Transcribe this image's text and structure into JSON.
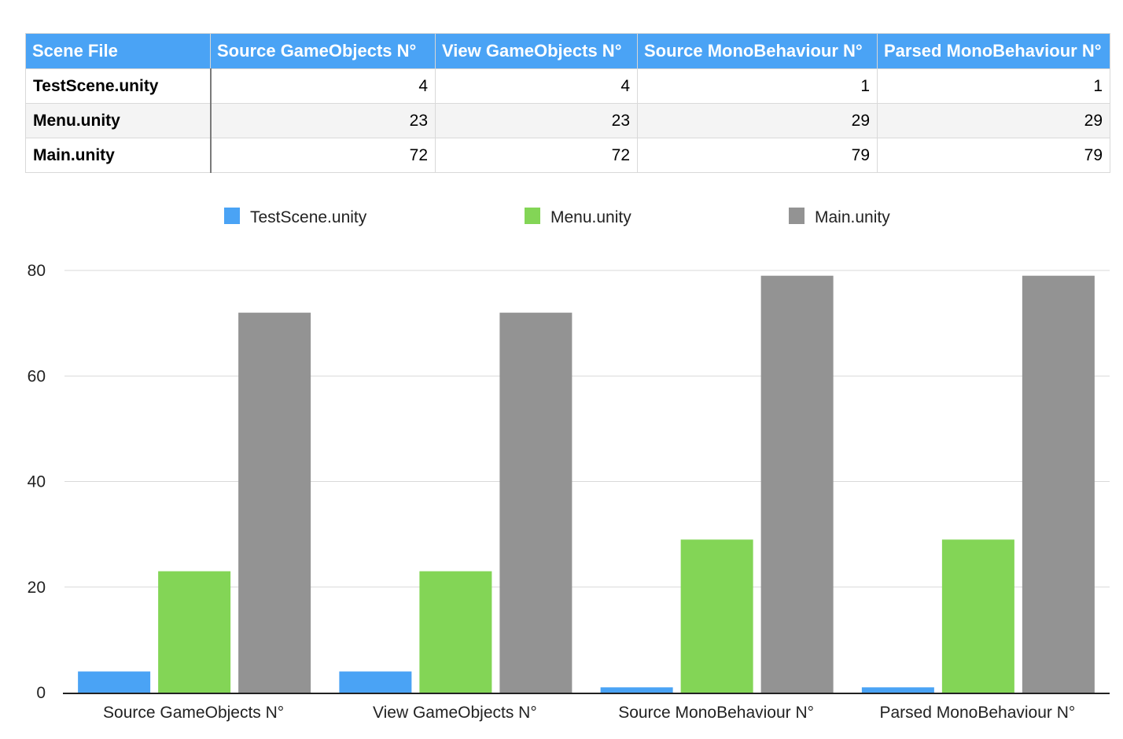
{
  "table": {
    "headers": [
      "Scene File",
      "Source GameObjects N°",
      "View GameObjects N°",
      "Source MonoBehaviour N°",
      "Parsed MonoBehaviour N°"
    ],
    "rows": [
      {
        "name": "TestScene.unity",
        "values": [
          "4",
          "4",
          "1",
          "1"
        ]
      },
      {
        "name": "Menu.unity",
        "values": [
          "23",
          "23",
          "29",
          "29"
        ]
      },
      {
        "name": "Main.unity",
        "values": [
          "72",
          "72",
          "79",
          "79"
        ]
      }
    ]
  },
  "chart_data": {
    "type": "bar",
    "categories": [
      "Source GameObjects N°",
      "View GameObjects N°",
      "Source MonoBehaviour N°",
      "Parsed MonoBehaviour N°"
    ],
    "series": [
      {
        "name": "TestScene.unity",
        "values": [
          4,
          4,
          1,
          1
        ],
        "color": "#4aa3f5"
      },
      {
        "name": "Menu.unity",
        "values": [
          23,
          23,
          29,
          29
        ],
        "color": "#83d556"
      },
      {
        "name": "Main.unity",
        "values": [
          72,
          72,
          79,
          79
        ],
        "color": "#939393"
      }
    ],
    "yticks": [
      "0",
      "20",
      "40",
      "60",
      "80"
    ],
    "ylim": [
      0,
      80
    ],
    "grid": true,
    "legend": "top-center",
    "title": "",
    "xlabel": "",
    "ylabel": ""
  }
}
